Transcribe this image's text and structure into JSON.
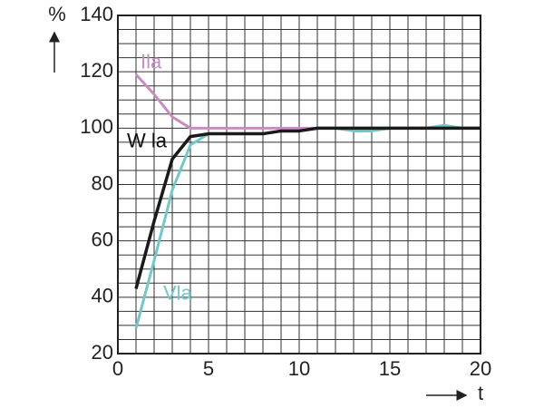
{
  "chart_data": {
    "type": "line",
    "xlabel": "t",
    "ylabel": "%",
    "x": [
      1,
      2,
      3,
      4,
      5,
      6,
      7,
      8,
      9,
      10,
      11,
      12,
      13,
      14,
      15,
      16,
      17,
      18,
      19,
      20
    ],
    "series": [
      {
        "name": "Ila",
        "color": "#c98cc2",
        "values": [
          119,
          112,
          104,
          100,
          100,
          100,
          100,
          100,
          100,
          100,
          100,
          100,
          100,
          100,
          100,
          100,
          100,
          100,
          100,
          100
        ]
      },
      {
        "name": "Vla",
        "color": "#72c8c8",
        "values": [
          29,
          53,
          78,
          94,
          98,
          98,
          98,
          98,
          99,
          99,
          100,
          100,
          99,
          99,
          100,
          100,
          100,
          101,
          100,
          100
        ]
      },
      {
        "name": "W la",
        "color": "#1a1a1a",
        "values": [
          43,
          67,
          89,
          97,
          98,
          98,
          98,
          98,
          99,
          99,
          100,
          100,
          100,
          100,
          100,
          100,
          100,
          100,
          100,
          100
        ]
      }
    ],
    "xlim": [
      0,
      20
    ],
    "xticks": [
      0,
      5,
      10,
      15,
      20
    ],
    "ylim": [
      20,
      140
    ],
    "yticks": [
      20,
      40,
      60,
      80,
      100,
      120,
      140
    ],
    "grid": true
  }
}
